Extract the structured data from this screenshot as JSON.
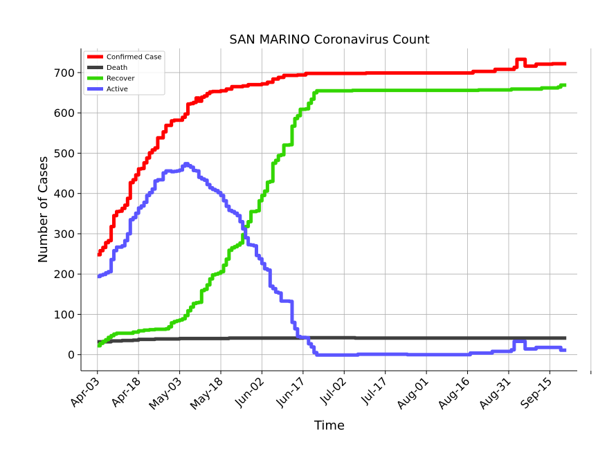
{
  "chart_data": {
    "type": "line",
    "title": "SAN MARINO Coronavirus Count",
    "xlabel": "Time",
    "ylabel": "Number of Cases",
    "x_start": "2020-04-03",
    "x_end": "2020-09-21",
    "xlim": [
      "2020-03-28",
      "2020-09-25"
    ],
    "ylim": [
      -40,
      760
    ],
    "x_ticks": [
      {
        "date": "2020-04-03",
        "label": "Apr-03"
      },
      {
        "date": "2020-04-18",
        "label": "Apr-18"
      },
      {
        "date": "2020-05-03",
        "label": "May-03"
      },
      {
        "date": "2020-05-18",
        "label": "May-18"
      },
      {
        "date": "2020-06-02",
        "label": "Jun-02"
      },
      {
        "date": "2020-06-17",
        "label": "Jun-17"
      },
      {
        "date": "2020-07-02",
        "label": "Jul-02"
      },
      {
        "date": "2020-07-17",
        "label": "Jul-17"
      },
      {
        "date": "2020-08-01",
        "label": "Aug-01"
      },
      {
        "date": "2020-08-16",
        "label": "Aug-16"
      },
      {
        "date": "2020-08-31",
        "label": "Aug-31"
      },
      {
        "date": "2020-09-15",
        "label": "Sep-15"
      }
    ],
    "y_ticks": [
      0,
      100,
      200,
      300,
      400,
      500,
      600,
      700
    ],
    "grid": true,
    "legend_position": "top-left",
    "series": [
      {
        "name": "Confirmed Case",
        "color": "#ff0000",
        "points": [
          [
            "2020-04-03",
            248
          ],
          [
            "2020-04-04",
            258
          ],
          [
            "2020-04-05",
            266
          ],
          [
            "2020-04-06",
            278
          ],
          [
            "2020-04-07",
            283
          ],
          [
            "2020-04-08",
            318
          ],
          [
            "2020-04-09",
            345
          ],
          [
            "2020-04-10",
            355
          ],
          [
            "2020-04-11",
            356
          ],
          [
            "2020-04-12",
            363
          ],
          [
            "2020-04-13",
            371
          ],
          [
            "2020-04-14",
            388
          ],
          [
            "2020-04-15",
            427
          ],
          [
            "2020-04-16",
            434
          ],
          [
            "2020-04-17",
            446
          ],
          [
            "2020-04-18",
            461
          ],
          [
            "2020-04-19",
            462
          ],
          [
            "2020-04-20",
            476
          ],
          [
            "2020-04-21",
            488
          ],
          [
            "2020-04-22",
            501
          ],
          [
            "2020-04-23",
            508
          ],
          [
            "2020-04-24",
            513
          ],
          [
            "2020-04-25",
            538
          ],
          [
            "2020-04-26",
            538
          ],
          [
            "2020-04-27",
            553
          ],
          [
            "2020-04-28",
            569
          ],
          [
            "2020-04-29",
            569
          ],
          [
            "2020-04-30",
            580
          ],
          [
            "2020-05-01",
            582
          ],
          [
            "2020-05-02",
            582
          ],
          [
            "2020-05-03",
            582
          ],
          [
            "2020-05-04",
            589
          ],
          [
            "2020-05-05",
            597
          ],
          [
            "2020-05-06",
            622
          ],
          [
            "2020-05-07",
            623
          ],
          [
            "2020-05-08",
            626
          ],
          [
            "2020-05-09",
            637
          ],
          [
            "2020-05-10",
            629
          ],
          [
            "2020-05-11",
            639
          ],
          [
            "2020-05-12",
            642
          ],
          [
            "2020-05-13",
            648
          ],
          [
            "2020-05-14",
            652
          ],
          [
            "2020-05-15",
            653
          ],
          [
            "2020-05-18",
            655
          ],
          [
            "2020-05-20",
            659
          ],
          [
            "2020-05-22",
            665
          ],
          [
            "2020-05-26",
            667
          ],
          [
            "2020-05-28",
            670
          ],
          [
            "2020-06-02",
            672
          ],
          [
            "2020-06-04",
            676
          ],
          [
            "2020-06-06",
            684
          ],
          [
            "2020-06-08",
            688
          ],
          [
            "2020-06-10",
            693
          ],
          [
            "2020-06-15",
            694
          ],
          [
            "2020-06-18",
            698
          ],
          [
            "2020-07-01",
            698
          ],
          [
            "2020-07-10",
            699
          ],
          [
            "2020-07-20",
            699
          ],
          [
            "2020-08-01",
            699
          ],
          [
            "2020-08-16",
            699
          ],
          [
            "2020-08-18",
            703
          ],
          [
            "2020-08-24",
            703
          ],
          [
            "2020-08-26",
            708
          ],
          [
            "2020-09-01",
            708
          ],
          [
            "2020-09-02",
            713
          ],
          [
            "2020-09-03",
            733
          ],
          [
            "2020-09-05",
            733
          ],
          [
            "2020-09-06",
            716
          ],
          [
            "2020-09-09",
            716
          ],
          [
            "2020-09-10",
            721
          ],
          [
            "2020-09-15",
            721
          ],
          [
            "2020-09-16",
            722
          ],
          [
            "2020-09-21",
            722
          ]
        ]
      },
      {
        "name": "Death",
        "color": "#3f3f3f",
        "points": [
          [
            "2020-04-03",
            32
          ],
          [
            "2020-04-08",
            34
          ],
          [
            "2020-04-12",
            35
          ],
          [
            "2020-04-16",
            36
          ],
          [
            "2020-04-18",
            38
          ],
          [
            "2020-04-24",
            39
          ],
          [
            "2020-05-03",
            40
          ],
          [
            "2020-05-21",
            41
          ],
          [
            "2020-06-17",
            42
          ],
          [
            "2020-07-05",
            42
          ],
          [
            "2020-07-06",
            41
          ],
          [
            "2020-09-21",
            41
          ]
        ]
      },
      {
        "name": "Recover",
        "color": "#33d600",
        "points": [
          [
            "2020-04-03",
            22
          ],
          [
            "2020-04-04",
            28
          ],
          [
            "2020-04-05",
            33
          ],
          [
            "2020-04-06",
            37
          ],
          [
            "2020-04-07",
            43
          ],
          [
            "2020-04-08",
            47
          ],
          [
            "2020-04-09",
            51
          ],
          [
            "2020-04-10",
            53
          ],
          [
            "2020-04-14",
            53
          ],
          [
            "2020-04-16",
            56
          ],
          [
            "2020-04-18",
            59
          ],
          [
            "2020-04-20",
            61
          ],
          [
            "2020-04-22",
            62
          ],
          [
            "2020-04-24",
            63
          ],
          [
            "2020-04-28",
            64
          ],
          [
            "2020-04-29",
            69
          ],
          [
            "2020-04-30",
            79
          ],
          [
            "2020-05-01",
            82
          ],
          [
            "2020-05-02",
            84
          ],
          [
            "2020-05-03",
            86
          ],
          [
            "2020-05-04",
            89
          ],
          [
            "2020-05-05",
            97
          ],
          [
            "2020-05-06",
            109
          ],
          [
            "2020-05-07",
            118
          ],
          [
            "2020-05-08",
            127
          ],
          [
            "2020-05-09",
            129
          ],
          [
            "2020-05-10",
            130
          ],
          [
            "2020-05-11",
            159
          ],
          [
            "2020-05-12",
            162
          ],
          [
            "2020-05-13",
            173
          ],
          [
            "2020-05-14",
            188
          ],
          [
            "2020-05-15",
            198
          ],
          [
            "2020-05-16",
            200
          ],
          [
            "2020-05-17",
            202
          ],
          [
            "2020-05-18",
            206
          ],
          [
            "2020-05-19",
            222
          ],
          [
            "2020-05-20",
            237
          ],
          [
            "2020-05-21",
            259
          ],
          [
            "2020-05-22",
            265
          ],
          [
            "2020-05-23",
            268
          ],
          [
            "2020-05-24",
            272
          ],
          [
            "2020-05-25",
            277
          ],
          [
            "2020-05-26",
            298
          ],
          [
            "2020-05-27",
            318
          ],
          [
            "2020-05-28",
            330
          ],
          [
            "2020-05-29",
            355
          ],
          [
            "2020-05-31",
            357
          ],
          [
            "2020-06-01",
            382
          ],
          [
            "2020-06-02",
            395
          ],
          [
            "2020-06-03",
            406
          ],
          [
            "2020-06-04",
            428
          ],
          [
            "2020-06-05",
            430
          ],
          [
            "2020-06-06",
            475
          ],
          [
            "2020-06-07",
            482
          ],
          [
            "2020-06-08",
            494
          ],
          [
            "2020-06-09",
            496
          ],
          [
            "2020-06-10",
            520
          ],
          [
            "2020-06-12",
            521
          ],
          [
            "2020-06-13",
            567
          ],
          [
            "2020-06-14",
            586
          ],
          [
            "2020-06-15",
            593
          ],
          [
            "2020-06-16",
            609
          ],
          [
            "2020-06-18",
            610
          ],
          [
            "2020-06-19",
            624
          ],
          [
            "2020-06-20",
            634
          ],
          [
            "2020-06-21",
            650
          ],
          [
            "2020-06-22",
            655
          ],
          [
            "2020-07-05",
            656
          ],
          [
            "2020-08-01",
            656
          ],
          [
            "2020-08-20",
            657
          ],
          [
            "2020-09-01",
            659
          ],
          [
            "2020-09-12",
            662
          ],
          [
            "2020-09-18",
            664
          ],
          [
            "2020-09-19",
            669
          ],
          [
            "2020-09-21",
            669
          ]
        ]
      },
      {
        "name": "Active",
        "color": "#5b55ff",
        "points": [
          [
            "2020-04-03",
            194
          ],
          [
            "2020-04-04",
            197
          ],
          [
            "2020-04-05",
            199
          ],
          [
            "2020-04-06",
            203
          ],
          [
            "2020-04-07",
            206
          ],
          [
            "2020-04-08",
            236
          ],
          [
            "2020-04-09",
            258
          ],
          [
            "2020-04-10",
            267
          ],
          [
            "2020-04-12",
            270
          ],
          [
            "2020-04-13",
            283
          ],
          [
            "2020-04-14",
            300
          ],
          [
            "2020-04-15",
            335
          ],
          [
            "2020-04-16",
            340
          ],
          [
            "2020-04-17",
            351
          ],
          [
            "2020-04-18",
            364
          ],
          [
            "2020-04-19",
            369
          ],
          [
            "2020-04-20",
            378
          ],
          [
            "2020-04-21",
            395
          ],
          [
            "2020-04-22",
            402
          ],
          [
            "2020-04-23",
            411
          ],
          [
            "2020-04-24",
            431
          ],
          [
            "2020-04-25",
            434
          ],
          [
            "2020-04-26",
            434
          ],
          [
            "2020-04-27",
            451
          ],
          [
            "2020-04-28",
            456
          ],
          [
            "2020-04-29",
            456
          ],
          [
            "2020-04-30",
            454
          ],
          [
            "2020-05-01",
            455
          ],
          [
            "2020-05-02",
            456
          ],
          [
            "2020-05-03",
            458
          ],
          [
            "2020-05-04",
            468
          ],
          [
            "2020-05-05",
            474
          ],
          [
            "2020-05-06",
            469
          ],
          [
            "2020-05-07",
            465
          ],
          [
            "2020-05-08",
            457
          ],
          [
            "2020-05-09",
            456
          ],
          [
            "2020-05-10",
            440
          ],
          [
            "2020-05-11",
            436
          ],
          [
            "2020-05-12",
            433
          ],
          [
            "2020-05-13",
            422
          ],
          [
            "2020-05-14",
            414
          ],
          [
            "2020-05-15",
            410
          ],
          [
            "2020-05-16",
            407
          ],
          [
            "2020-05-17",
            402
          ],
          [
            "2020-05-18",
            395
          ],
          [
            "2020-05-19",
            382
          ],
          [
            "2020-05-20",
            368
          ],
          [
            "2020-05-21",
            358
          ],
          [
            "2020-05-22",
            355
          ],
          [
            "2020-05-23",
            351
          ],
          [
            "2020-05-24",
            345
          ],
          [
            "2020-05-25",
            330
          ],
          [
            "2020-05-26",
            312
          ],
          [
            "2020-05-27",
            290
          ],
          [
            "2020-05-28",
            273
          ],
          [
            "2020-05-29",
            272
          ],
          [
            "2020-05-30",
            270
          ],
          [
            "2020-05-31",
            246
          ],
          [
            "2020-06-01",
            238
          ],
          [
            "2020-06-02",
            226
          ],
          [
            "2020-06-03",
            213
          ],
          [
            "2020-06-04",
            210
          ],
          [
            "2020-06-05",
            170
          ],
          [
            "2020-06-06",
            164
          ],
          [
            "2020-06-07",
            155
          ],
          [
            "2020-06-08",
            153
          ],
          [
            "2020-06-09",
            133
          ],
          [
            "2020-06-12",
            132
          ],
          [
            "2020-06-13",
            80
          ],
          [
            "2020-06-14",
            64
          ],
          [
            "2020-06-15",
            45
          ],
          [
            "2020-06-16",
            43
          ],
          [
            "2020-06-18",
            42
          ],
          [
            "2020-06-19",
            27
          ],
          [
            "2020-06-20",
            19
          ],
          [
            "2020-06-21",
            5
          ],
          [
            "2020-06-22",
            -1
          ],
          [
            "2020-07-06",
            -1
          ],
          [
            "2020-07-07",
            1
          ],
          [
            "2020-07-20",
            1
          ],
          [
            "2020-07-25",
            0
          ],
          [
            "2020-08-16",
            0
          ],
          [
            "2020-08-17",
            4
          ],
          [
            "2020-08-24",
            4
          ],
          [
            "2020-08-25",
            8
          ],
          [
            "2020-08-31",
            8
          ],
          [
            "2020-09-01",
            12
          ],
          [
            "2020-09-02",
            33
          ],
          [
            "2020-09-05",
            33
          ],
          [
            "2020-09-06",
            14
          ],
          [
            "2020-09-09",
            14
          ],
          [
            "2020-09-10",
            18
          ],
          [
            "2020-09-18",
            18
          ],
          [
            "2020-09-19",
            11
          ],
          [
            "2020-09-21",
            11
          ]
        ]
      }
    ]
  }
}
